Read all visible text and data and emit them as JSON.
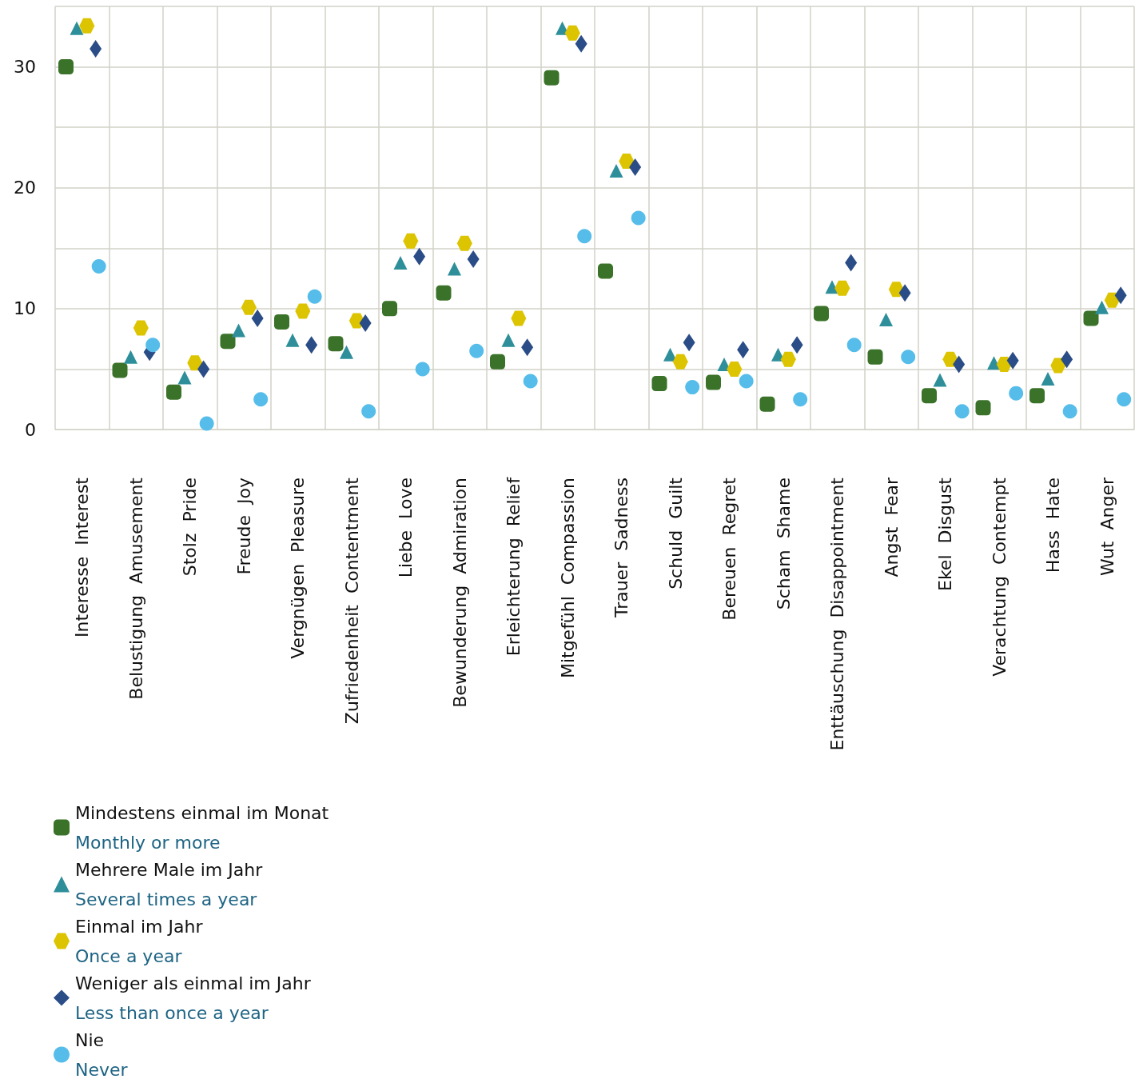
{
  "chart_data": {
    "type": "scatter",
    "categories": [
      "Interesse  Interest",
      "Belustigung  Amusement",
      "Stolz  Pride",
      "Freude  Joy",
      "Vergnügen  Pleasure",
      "Zufriedenheit  Contentment",
      "Liebe  Love",
      "Bewunderung  Admiration",
      "Erleichterung  Relief",
      "Mitgefühl  Compassion",
      "Trauer  Sadness",
      "Schuld  Guilt",
      "Bereuen  Regret",
      "Scham  Shame",
      "Enttäuschung  Disappointment",
      "Angst  Fear",
      "Ekel  Disgust",
      "Verachtung  Contempt",
      "Hass  Hate",
      "Wut  Anger"
    ],
    "series": [
      {
        "name": "Mindestens einmal im Monat\nMonthly or more",
        "color": "#3a7229",
        "marker": "square",
        "values": [
          30.0,
          4.9,
          3.1,
          7.3,
          8.9,
          7.1,
          10.0,
          11.3,
          5.6,
          29.1,
          13.1,
          3.8,
          3.9,
          2.1,
          9.6,
          6.0,
          2.8,
          1.8,
          2.8,
          9.2
        ]
      },
      {
        "name": "Mehrere Male im Jahr\nSeveral times a year",
        "color": "#2e8f9a",
        "marker": "triangle",
        "values": [
          33.2,
          6.0,
          4.3,
          8.2,
          7.4,
          6.4,
          13.8,
          13.3,
          7.4,
          33.2,
          21.4,
          6.2,
          5.4,
          6.2,
          11.8,
          9.1,
          4.1,
          5.5,
          4.2,
          10.1
        ]
      },
      {
        "name": "Einmal im Jahr\nOnce a year",
        "color": "#dcc400",
        "values": [
          33.4,
          8.4,
          5.5,
          10.1,
          9.8,
          9.0,
          15.6,
          15.4,
          9.2,
          32.8,
          22.2,
          5.6,
          5.0,
          5.8,
          11.7,
          11.6,
          5.8,
          5.4,
          5.3,
          10.7
        ]
      },
      {
        "name": "Weniger als einmal im Jahr\nLess than once a year",
        "color": "#2b4d87",
        "marker": "diamond",
        "values": [
          31.5,
          6.4,
          5.0,
          9.2,
          7.0,
          8.8,
          14.3,
          14.1,
          6.8,
          31.9,
          21.7,
          7.2,
          6.6,
          7.0,
          13.8,
          11.3,
          5.4,
          5.7,
          5.8,
          11.1
        ]
      },
      {
        "name": "Nie\nNever",
        "color": "#56bdea",
        "marker": "circle",
        "values": [
          13.5,
          7.0,
          0.5,
          2.5,
          11.0,
          1.5,
          5.0,
          6.5,
          4.0,
          16.0,
          17.5,
          3.5,
          4.0,
          2.5,
          7.0,
          6.0,
          1.5,
          3.0,
          1.5,
          2.5
        ]
      }
    ],
    "ylim": [
      0,
      35
    ],
    "yticks": [
      0,
      {
        "value": 5,
        "label": null
      },
      10,
      {
        "value": 15,
        "label": null
      },
      20,
      {
        "value": 25,
        "label": null
      },
      30,
      {
        "value": 35,
        "label": null
      }
    ],
    "grid": true,
    "legend": "bottom left"
  }
}
